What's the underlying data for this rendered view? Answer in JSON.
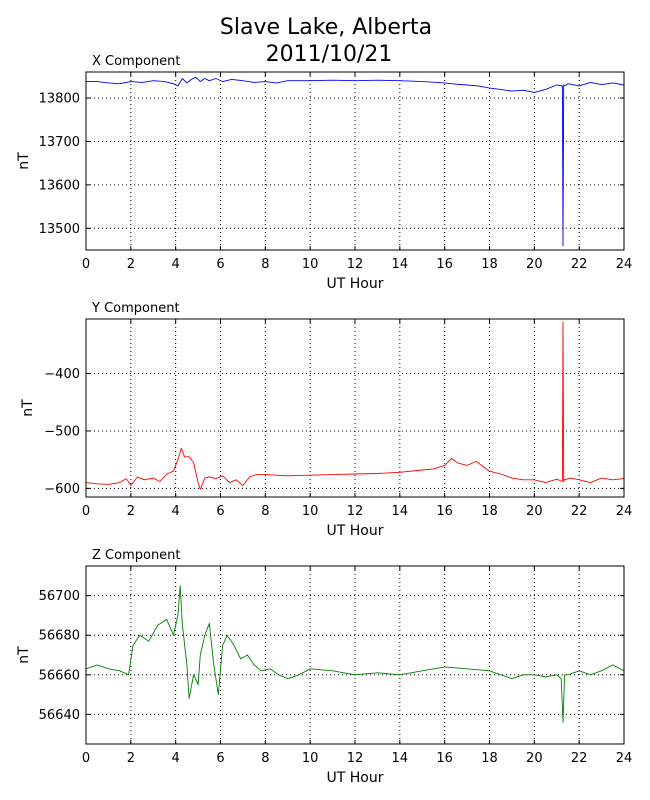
{
  "title_line1": "Slave Lake, Alberta",
  "title_line2": "2011/10/21",
  "chart_data": [
    {
      "type": "line",
      "title": "X Component",
      "xlabel": "UT Hour",
      "ylabel": "nT",
      "xlim": [
        0,
        24
      ],
      "ylim": [
        13450,
        13860
      ],
      "xticks": [
        0,
        2,
        4,
        6,
        8,
        10,
        12,
        14,
        16,
        18,
        20,
        22,
        24
      ],
      "yticks": [
        13500,
        13600,
        13700,
        13800
      ],
      "grid": true,
      "color": "#0000ff",
      "series": [
        {
          "x": [
            0,
            0.5,
            1,
            1.5,
            2,
            2.5,
            3,
            3.5,
            3.9,
            4.1,
            4.3,
            4.5,
            4.7,
            4.9,
            5.1,
            5.3,
            5.5,
            5.8,
            6.1,
            6.5,
            7,
            7.5,
            8,
            8.5,
            9,
            10,
            11,
            12,
            13,
            14,
            15,
            16,
            16.5,
            17,
            17.5,
            18,
            18.5,
            19,
            19.5,
            20,
            20.5,
            21,
            21.25,
            21.28,
            21.31,
            21.34,
            21.5,
            22,
            22.5,
            23,
            23.5,
            24
          ],
          "y": [
            13838,
            13838,
            13835,
            13833,
            13838,
            13836,
            13840,
            13838,
            13833,
            13828,
            13845,
            13835,
            13843,
            13848,
            13838,
            13845,
            13840,
            13845,
            13838,
            13843,
            13840,
            13836,
            13838,
            13835,
            13840,
            13840,
            13841,
            13840,
            13841,
            13840,
            13838,
            13835,
            13832,
            13830,
            13828,
            13823,
            13820,
            13816,
            13818,
            13813,
            13820,
            13830,
            13828,
            13460,
            13830,
            13828,
            13833,
            13828,
            13836,
            13831,
            13835,
            13830
          ]
        }
      ]
    },
    {
      "type": "line",
      "title": "Y Component",
      "xlabel": "UT Hour",
      "ylabel": "nT",
      "xlim": [
        0,
        24
      ],
      "ylim": [
        -615,
        -305
      ],
      "xticks": [
        0,
        2,
        4,
        6,
        8,
        10,
        12,
        14,
        16,
        18,
        20,
        22,
        24
      ],
      "yticks": [
        -400,
        -500,
        -600
      ],
      "grid": true,
      "color": "#ff0000",
      "series": [
        {
          "x": [
            0,
            0.5,
            1,
            1.5,
            1.8,
            2,
            2.3,
            2.6,
            3,
            3.3,
            3.6,
            3.9,
            4.1,
            4.25,
            4.4,
            4.6,
            4.8,
            5.0,
            5.1,
            5.3,
            5.5,
            5.8,
            6.1,
            6.4,
            6.7,
            7.0,
            7.3,
            7.6,
            8,
            9,
            10,
            11,
            12,
            13,
            14,
            15,
            15.5,
            16,
            16.3,
            16.6,
            17,
            17.4,
            18,
            18.5,
            19,
            19.5,
            20,
            20.5,
            21,
            21.25,
            21.28,
            21.31,
            21.34,
            21.6,
            22,
            22.5,
            23,
            23.5,
            24
          ],
          "y": [
            -590,
            -592,
            -593,
            -590,
            -583,
            -595,
            -580,
            -585,
            -582,
            -588,
            -575,
            -570,
            -550,
            -530,
            -545,
            -545,
            -555,
            -590,
            -602,
            -582,
            -580,
            -583,
            -578,
            -590,
            -585,
            -595,
            -580,
            -576,
            -576,
            -578,
            -577,
            -576,
            -575,
            -574,
            -572,
            -568,
            -566,
            -560,
            -548,
            -556,
            -560,
            -553,
            -570,
            -575,
            -582,
            -585,
            -585,
            -590,
            -584,
            -588,
            -310,
            -588,
            -585,
            -582,
            -585,
            -590,
            -582,
            -585,
            -583
          ]
        }
      ]
    },
    {
      "type": "line",
      "title": "Z Component",
      "xlabel": "UT Hour",
      "ylabel": "nT",
      "xlim": [
        0,
        24
      ],
      "ylim": [
        56625,
        56715
      ],
      "xticks": [
        0,
        2,
        4,
        6,
        8,
        10,
        12,
        14,
        16,
        18,
        20,
        22,
        24
      ],
      "yticks": [
        56640,
        56660,
        56680,
        56700
      ],
      "grid": true,
      "color": "#008000",
      "series": [
        {
          "x": [
            0,
            0.5,
            1,
            1.5,
            1.9,
            2.1,
            2.4,
            2.8,
            3.2,
            3.6,
            3.9,
            4.1,
            4.2,
            4.3,
            4.5,
            4.6,
            4.8,
            5.0,
            5.1,
            5.3,
            5.5,
            5.7,
            5.9,
            6.1,
            6.3,
            6.6,
            6.9,
            7.2,
            7.5,
            7.8,
            8.2,
            8.6,
            9,
            9.5,
            10,
            11,
            12,
            13,
            14,
            15,
            16,
            17,
            18,
            18.5,
            19,
            19.5,
            20,
            20.5,
            21,
            21.2,
            21.28,
            21.35,
            21.5,
            22,
            22.5,
            23,
            23.5,
            24
          ],
          "y": [
            56663,
            56665,
            56663,
            56662,
            56660,
            56675,
            56680,
            56677,
            56685,
            56688,
            56680,
            56690,
            56705,
            56685,
            56665,
            56648,
            56660,
            56655,
            56670,
            56680,
            56686,
            56665,
            56650,
            56675,
            56680,
            56675,
            56668,
            56670,
            56665,
            56662,
            56663,
            56660,
            56658,
            56660,
            56663,
            56662,
            56660,
            56661,
            56660,
            56662,
            56664,
            56663,
            56662,
            56660,
            56658,
            56660,
            56660,
            56659,
            56660,
            56658,
            56636,
            56660,
            56660,
            56662,
            56660,
            56662,
            56665,
            56662
          ]
        }
      ]
    }
  ]
}
